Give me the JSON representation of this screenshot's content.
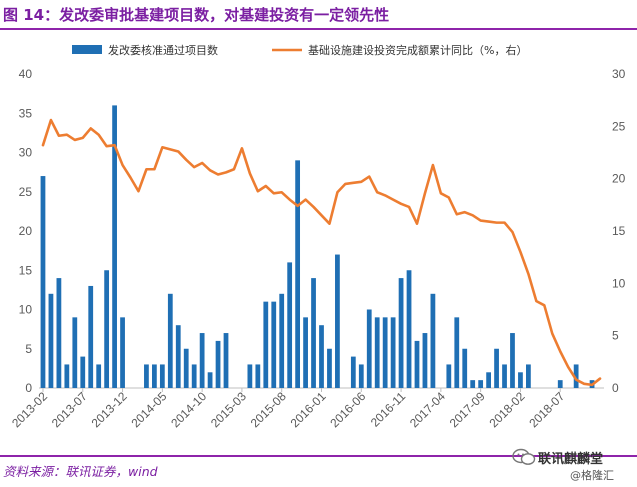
{
  "title": "图 14：发改委审批基建项目数，对基建投资有一定领先性",
  "source": "资料来源：联讯证券，wind",
  "watermark": {
    "main": "联讯麒麟堂",
    "sub": "@格隆汇"
  },
  "colors": {
    "bar": "#1f6fb4",
    "line": "#ed7d31",
    "title": "#7b1fa2"
  },
  "chart_data": {
    "type": "bar+line",
    "title": "",
    "left_axis": {
      "min": 0,
      "max": 40,
      "ticks": [
        0,
        5,
        10,
        15,
        20,
        25,
        30,
        35,
        40
      ]
    },
    "right_axis": {
      "min": 0,
      "max": 30,
      "ticks": [
        0,
        5,
        10,
        15,
        20,
        25,
        30
      ]
    },
    "x_tick_labels": [
      "2013-02",
      "2013-07",
      "2013-12",
      "2014-05",
      "2014-10",
      "2015-03",
      "2015-08",
      "2016-01",
      "2016-06",
      "2016-11",
      "2017-04",
      "2017-09",
      "2018-02",
      "2018-07"
    ],
    "legend_position": "top",
    "series": [
      {
        "name": "发改委核准通过项目数",
        "type": "bar",
        "axis": "left",
        "start": "2013-02",
        "values": [
          27,
          12,
          14,
          3,
          9,
          4,
          13,
          3,
          15,
          36,
          9,
          0,
          0,
          3,
          3,
          3,
          12,
          8,
          5,
          3,
          7,
          2,
          6,
          7,
          0,
          0,
          3,
          3,
          11,
          11,
          12,
          16,
          29,
          9,
          14,
          8,
          5,
          17,
          0,
          4,
          3,
          10,
          9,
          9,
          9,
          14,
          15,
          6,
          7,
          12,
          0,
          3,
          9,
          5,
          1,
          1,
          2,
          5,
          3,
          7,
          2,
          3,
          0,
          0,
          0,
          1,
          0,
          3,
          0,
          1,
          0
        ]
      },
      {
        "name": "基础设施建设投资完成额累计同比（%，右）",
        "type": "line",
        "axis": "right",
        "start": "2013-02",
        "values": [
          23.2,
          25.6,
          24.1,
          24.2,
          23.7,
          23.9,
          24.8,
          24.2,
          23.1,
          23.2,
          21.3,
          20.1,
          18.8,
          20.9,
          20.9,
          23.0,
          22.8,
          22.6,
          21.8,
          21.1,
          21.5,
          20.8,
          20.4,
          20.6,
          20.9,
          22.9,
          20.5,
          18.8,
          19.3,
          18.6,
          18.7,
          18.0,
          17.4,
          18.0,
          17.3,
          16.5,
          15.7,
          18.7,
          19.5,
          19.6,
          19.7,
          20.2,
          18.7,
          18.4,
          18.0,
          17.6,
          17.3,
          15.7,
          18.6,
          21.3,
          18.6,
          18.2,
          16.6,
          16.8,
          16.5,
          16.0,
          15.9,
          15.8,
          15.8,
          14.9,
          13.0,
          10.9,
          8.3,
          7.9,
          5.2,
          3.5,
          2.0,
          0.8,
          0.4,
          0.3,
          0.9
        ]
      }
    ]
  }
}
